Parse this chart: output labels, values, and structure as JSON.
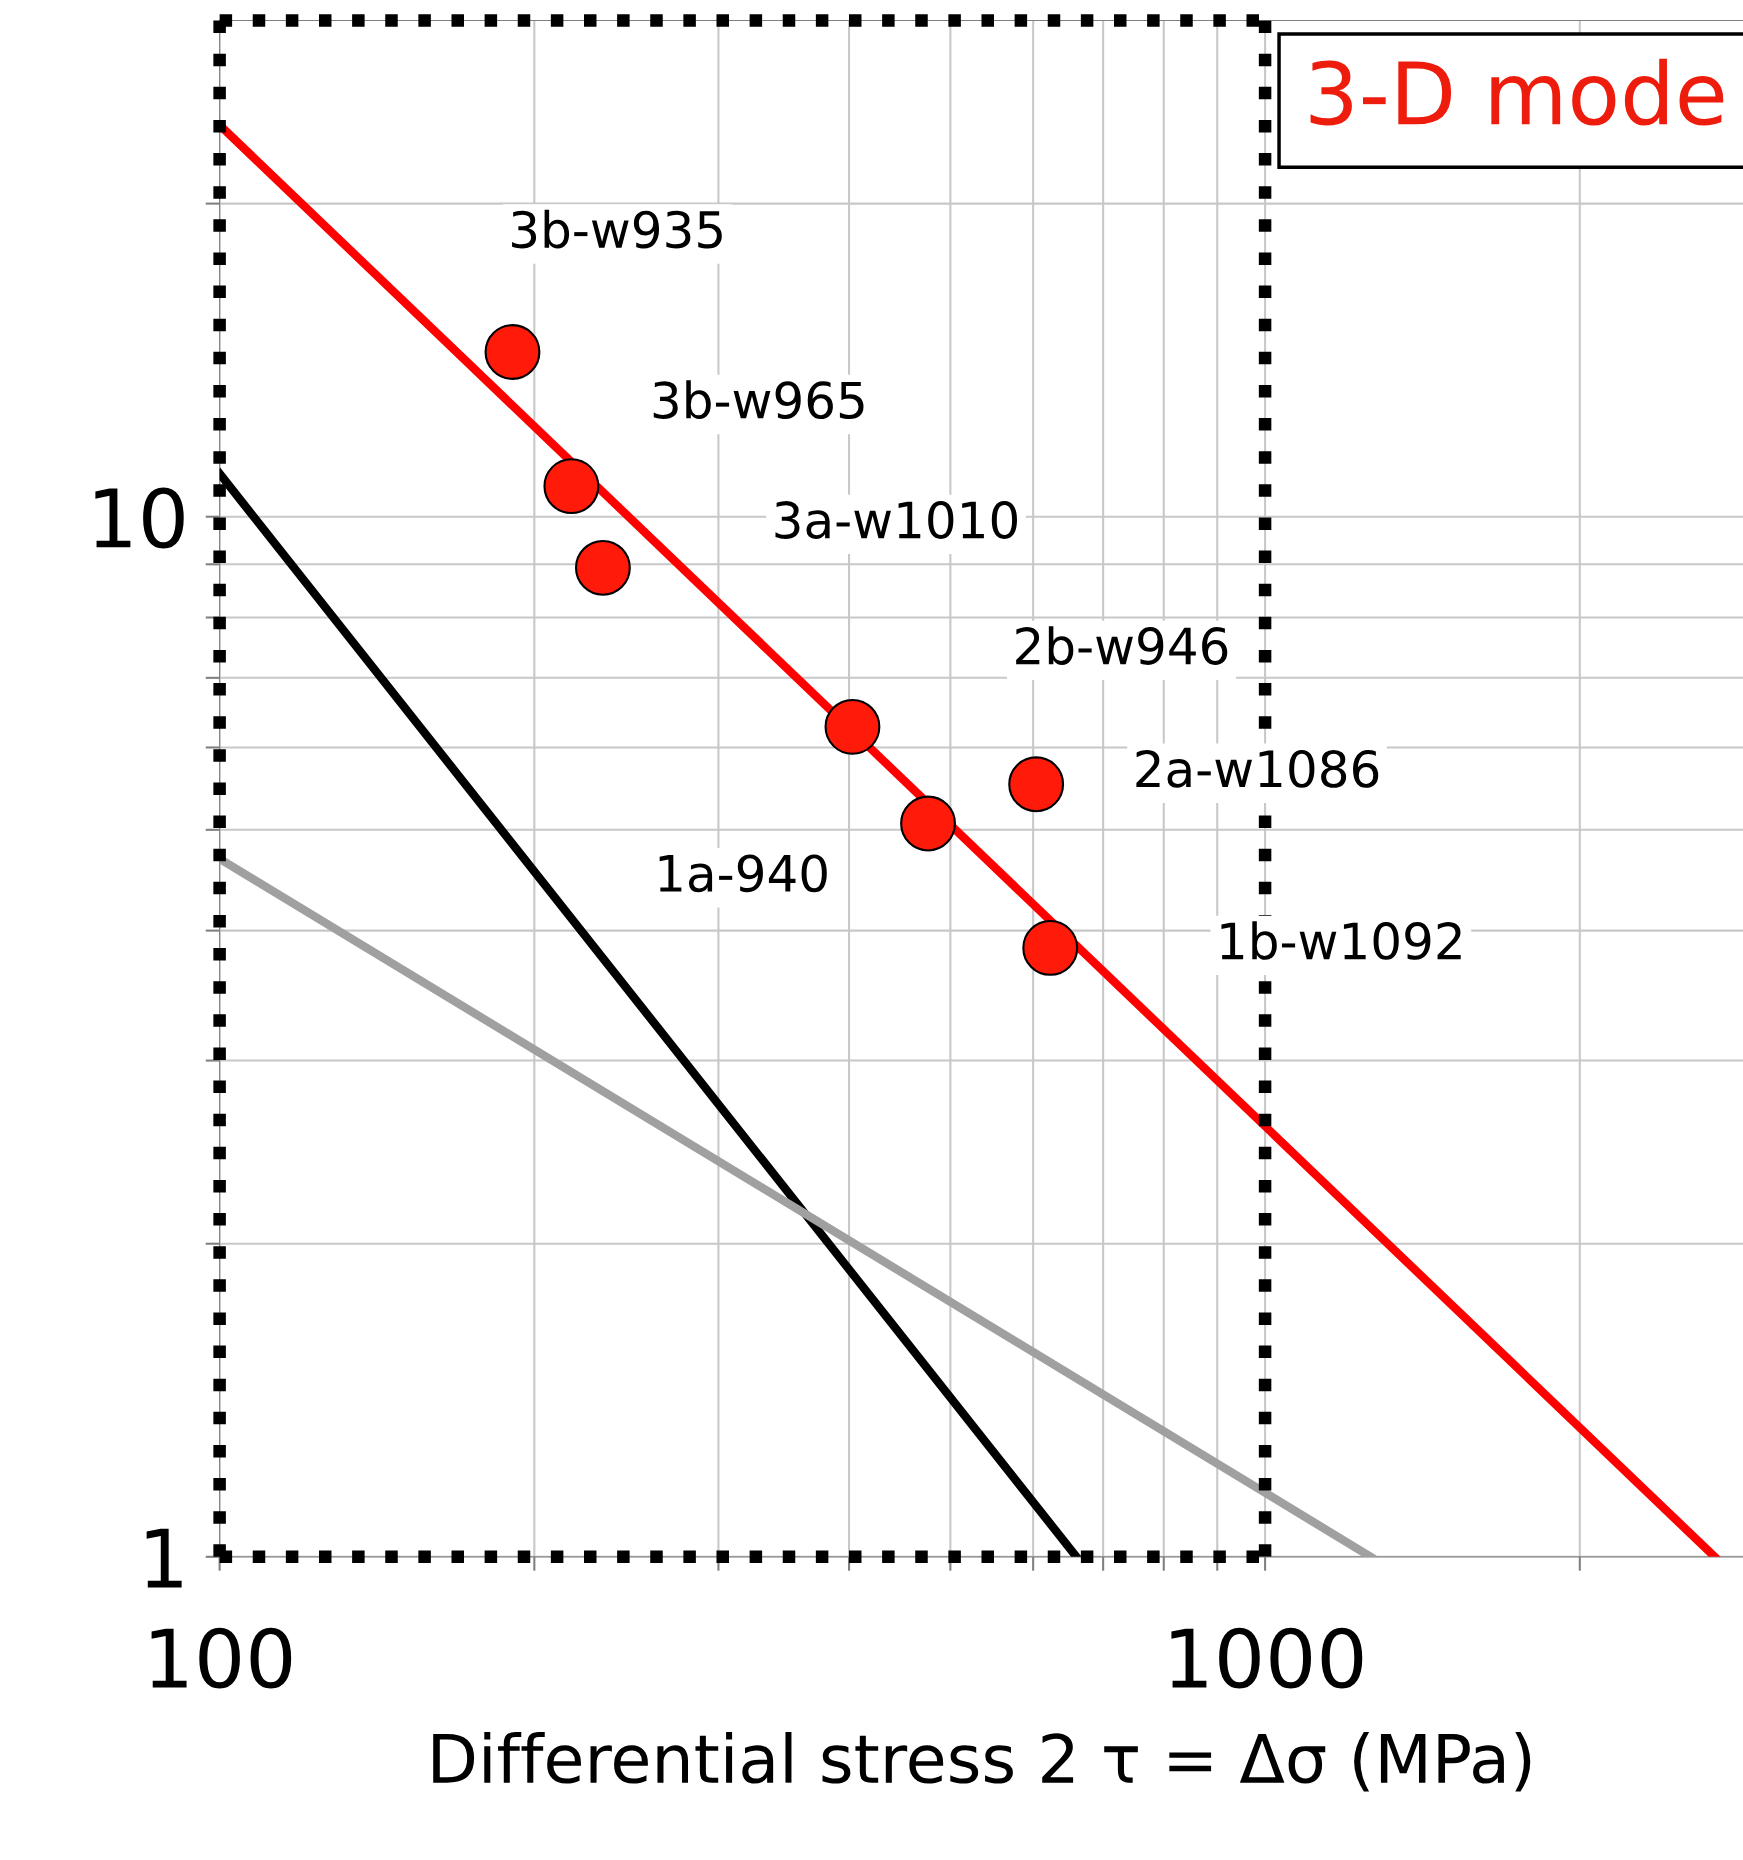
{
  "chart_data": {
    "type": "line",
    "xlabel": "Differential stress 2 τ = Δσ (MPa)",
    "log": "xy",
    "grid": true,
    "xlim": [
      100,
      2865
    ],
    "ylim": [
      1,
      30
    ],
    "xticks": [
      100,
      {
        "value": 200,
        "label": null
      },
      {
        "value": 300,
        "label": null
      },
      {
        "value": 400,
        "label": null
      },
      {
        "value": 500,
        "label": null
      },
      {
        "value": 600,
        "label": null
      },
      {
        "value": 700,
        "label": null
      },
      {
        "value": 800,
        "label": null
      },
      {
        "value": 900,
        "label": null
      },
      1000,
      {
        "value": 2000,
        "label": null
      }
    ],
    "yticks": [
      1,
      {
        "value": 2,
        "label": null
      },
      {
        "value": 3,
        "label": null
      },
      {
        "value": 4,
        "label": null
      },
      {
        "value": 5,
        "label": null
      },
      {
        "value": 6,
        "label": null
      },
      {
        "value": 7,
        "label": null
      },
      {
        "value": 8,
        "label": null
      },
      {
        "value": 9,
        "label": null
      },
      10,
      {
        "value": 20,
        "label": null
      }
    ],
    "series": [
      {
        "color": "#ff0000",
        "x": [
          100,
          2692
        ],
        "values": [
          23.8,
          1
        ],
        "marker": "none"
      },
      {
        "color": "#000000",
        "x": [
          100,
          660
        ],
        "values": [
          11.0,
          1
        ],
        "marker": "none"
      },
      {
        "color": "#a0a0a0",
        "x": [
          100,
          1262
        ],
        "values": [
          4.69,
          1
        ],
        "marker": "none"
      },
      {
        "type": "scatter",
        "color": "#ff1a0a",
        "x": [
          190.6,
          217,
          232.6,
          403,
          476,
          604,
          623
        ],
        "values": [
          14.4,
          10.7,
          8.93,
          6.28,
          5.07,
          5.53,
          3.85
        ],
        "marker": "circle"
      }
    ],
    "ref_lines": [
      {
        "axis": "x",
        "value": 1000,
        "color": "#000000",
        "line_style": "dotted"
      }
    ],
    "annotations": [
      "3b-w935",
      "3b-w965",
      "3a-w1010",
      "2b-w946",
      "2a-w1086",
      "1a-940",
      "1b-w1092",
      "3-D mode"
    ]
  }
}
